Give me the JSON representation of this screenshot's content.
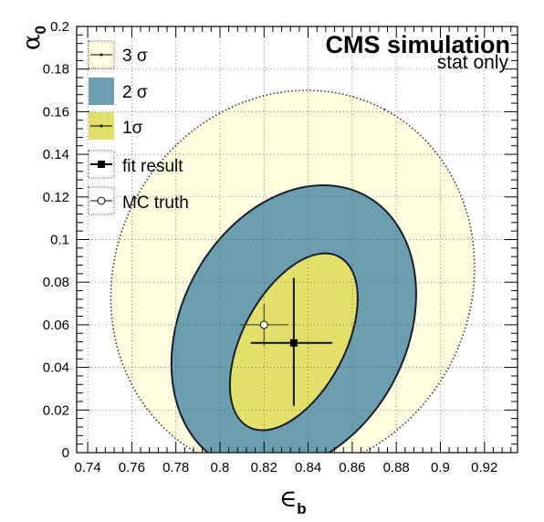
{
  "chart_data": {
    "type": "contour",
    "title": "CMS simulation",
    "subtitle": "stat only",
    "xlabel": "∈",
    "xlabel_sub": "b",
    "ylabel": "α",
    "ylabel_sub": "0",
    "xlim": [
      0.735,
      0.935
    ],
    "ylim": [
      0,
      0.2
    ],
    "x_ticks": [
      "0.74",
      "0.76",
      "0.78",
      "0.8",
      "0.82",
      "0.84",
      "0.86",
      "0.88",
      "0.9",
      "0.92"
    ],
    "y_ticks": [
      "0",
      "0.02",
      "0.04",
      "0.06",
      "0.08",
      "0.1",
      "0.12",
      "0.14",
      "0.16",
      "0.18",
      "0.2"
    ],
    "grid": true,
    "legend_position": "top-left",
    "legend": [
      {
        "label": "3 σ",
        "color": "#ffffe0"
      },
      {
        "label": "2 σ",
        "color": "#6b9fb0"
      },
      {
        "label": "1σ",
        "color": "#e3e06a"
      },
      {
        "label": "fit result"
      },
      {
        "label": "MC truth"
      }
    ],
    "contours": [
      {
        "name": "3 σ",
        "color": "#ffffe0",
        "center": [
          0.833,
          0.08
        ],
        "x_range": [
          0.751,
          0.916
        ],
        "y_range": [
          0,
          0.18
        ]
      },
      {
        "name": "2 σ",
        "color": "#6b9fb0",
        "center": [
          0.8335,
          0.058
        ],
        "x_range": [
          0.776,
          0.887
        ],
        "y_range": [
          0,
          0.135
        ]
      },
      {
        "name": "1σ",
        "color": "#e3e06a",
        "center": [
          0.8335,
          0.052
        ],
        "x_range": [
          0.804,
          0.862
        ],
        "y_range": [
          0.01,
          0.093
        ]
      }
    ],
    "fit_result": {
      "x": 0.8335,
      "y": 0.0515,
      "x_err": [
        0.0195,
        0.0175
      ],
      "y_err": [
        0.0295,
        0.0305
      ]
    },
    "mc_truth": {
      "x": 0.82,
      "y": 0.06,
      "x_err": [
        0.011,
        0.011
      ],
      "y_err": [
        0.01,
        0.01
      ]
    }
  }
}
